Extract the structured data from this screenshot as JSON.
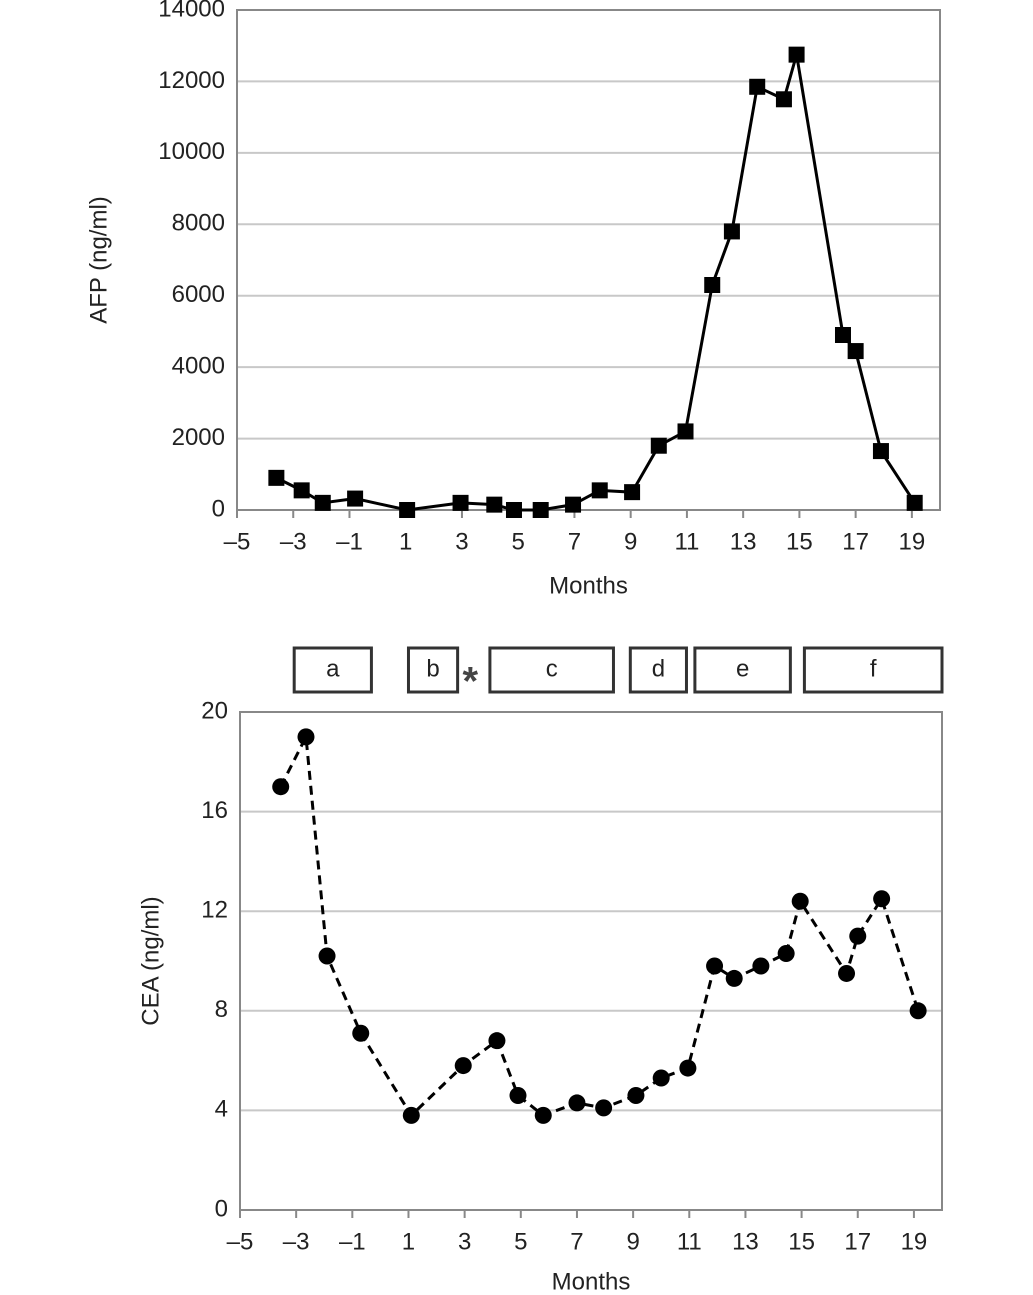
{
  "chart_data": [
    {
      "type": "line",
      "y_label": "AFP (ng/ml)",
      "x_label": "Months",
      "color": "#000000",
      "marker": "square",
      "line_style": "solid",
      "grid": true,
      "x": [
        -3.6,
        -2.7,
        -1.95,
        -0.8,
        1.05,
        2.95,
        4.15,
        4.85,
        5.8,
        6.95,
        7.9,
        9.05,
        10.0,
        10.95,
        11.9,
        12.6,
        13.5,
        14.45,
        14.9,
        16.55,
        17.0,
        17.9,
        19.1
      ],
      "values": [
        900,
        550,
        200,
        320,
        0,
        200,
        150,
        0,
        0,
        150,
        550,
        500,
        1800,
        2200,
        6300,
        7800,
        11850,
        11500,
        12750,
        4900,
        4450,
        1650,
        200
      ],
      "xlim": [
        -5,
        20
      ],
      "ylim": [
        0,
        14000
      ],
      "xticks": [
        {
          "value": -5,
          "label": "–5"
        },
        {
          "value": -3,
          "label": "–3"
        },
        {
          "value": -1,
          "label": "–1"
        },
        1,
        3,
        5,
        7,
        9,
        11,
        13,
        15,
        17,
        19
      ],
      "yticks": [
        0,
        2000,
        4000,
        6000,
        8000,
        10000,
        12000,
        14000
      ]
    },
    {
      "type": "line",
      "y_label": "CEA (ng/ml)",
      "x_label": "Months",
      "color": "#000000",
      "marker": "circle",
      "line_style": "dashed",
      "grid": true,
      "x": [
        -3.55,
        -2.65,
        -1.9,
        -0.7,
        1.1,
        2.95,
        4.15,
        4.9,
        5.8,
        7.0,
        7.95,
        9.1,
        10.0,
        10.95,
        11.9,
        12.6,
        13.55,
        14.45,
        14.95,
        16.6,
        17.0,
        17.85,
        19.15
      ],
      "values": [
        17.0,
        19.0,
        10.2,
        7.1,
        3.8,
        5.8,
        6.8,
        4.6,
        3.8,
        4.3,
        4.1,
        4.6,
        5.3,
        5.7,
        9.8,
        9.3,
        9.8,
        10.3,
        12.4,
        9.5,
        11.0,
        12.5,
        8.0
      ],
      "xlim": [
        -5,
        20
      ],
      "ylim": [
        0,
        20
      ],
      "xticks": [
        {
          "value": -5,
          "label": "–5"
        },
        {
          "value": -3,
          "label": "–3"
        },
        {
          "value": -1,
          "label": "–1"
        },
        1,
        3,
        5,
        7,
        9,
        11,
        13,
        15,
        17,
        19
      ],
      "yticks": [
        0,
        4,
        8,
        12,
        16,
        20
      ],
      "periods": [
        {
          "label": "a",
          "start": -3.07,
          "end": -0.32
        },
        {
          "label": "b",
          "start": 1.0,
          "end": 2.75
        },
        {
          "label": "c",
          "start": 3.9,
          "end": 8.3
        },
        {
          "label": "d",
          "start": 8.9,
          "end": 10.9
        },
        {
          "label": "e",
          "start": 11.2,
          "end": 14.6
        },
        {
          "label": "f",
          "start": 15.1,
          "end": 20.0
        }
      ],
      "marker_note": {
        "label": "*",
        "x": 3.2
      }
    }
  ]
}
